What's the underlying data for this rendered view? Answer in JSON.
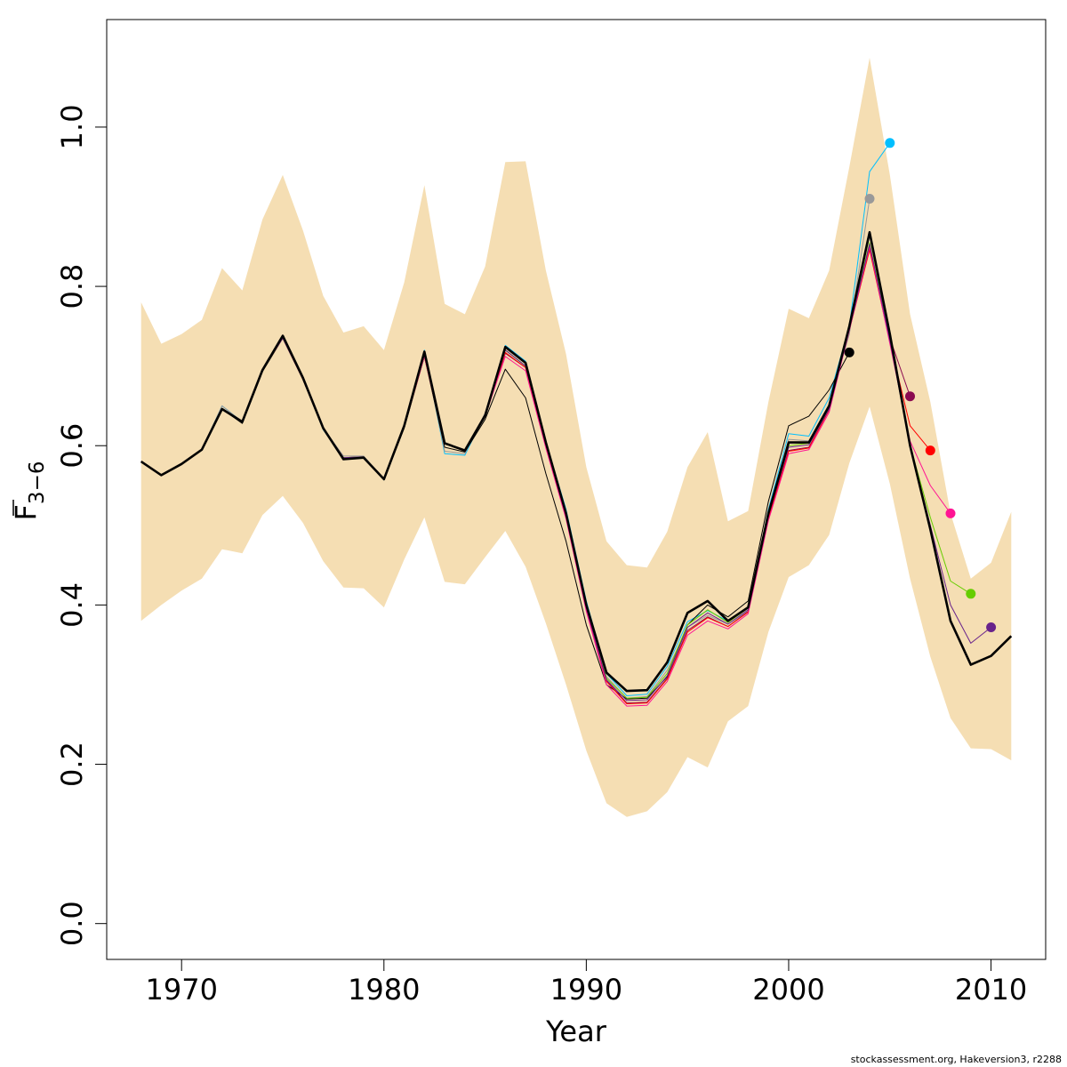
{
  "chart_data": {
    "type": "line",
    "title": "",
    "xlabel": "Year",
    "ylabel": {
      "main": "F",
      "sub": "3−6"
    },
    "xlim": [
      1966.3,
      2012.7
    ],
    "ylim": [
      -0.045,
      1.135
    ],
    "x_ticks": [
      1970,
      1980,
      1990,
      2000,
      2010
    ],
    "x_tick_labels": [
      "1970",
      "1980",
      "1990",
      "2000",
      "2010"
    ],
    "y_ticks": [
      0.0,
      0.2,
      0.4,
      0.6,
      0.8,
      1.0
    ],
    "y_tick_labels": [
      "0.0",
      "0.2",
      "0.4",
      "0.6",
      "0.8",
      "1.0"
    ],
    "grid": false,
    "band_color": "#F5DEB3",
    "band": {
      "x": [
        1968,
        1969,
        1970,
        1971,
        1972,
        1973,
        1974,
        1975,
        1976,
        1977,
        1978,
        1979,
        1980,
        1981,
        1982,
        1983,
        1984,
        1985,
        1986,
        1987,
        1988,
        1989,
        1990,
        1991,
        1992,
        1993,
        1994,
        1995,
        1996,
        1997,
        1998,
        1999,
        2000,
        2001,
        2002,
        2003,
        2004,
        2005,
        2006,
        2007,
        2008,
        2009,
        2010,
        2011
      ],
      "upper": [
        0.78,
        0.728,
        0.74,
        0.758,
        0.823,
        0.795,
        0.884,
        0.94,
        0.87,
        0.788,
        0.742,
        0.75,
        0.72,
        0.805,
        0.927,
        0.778,
        0.765,
        0.825,
        0.956,
        0.957,
        0.82,
        0.715,
        0.573,
        0.48,
        0.45,
        0.447,
        0.492,
        0.573,
        0.617,
        0.505,
        0.518,
        0.655,
        0.772,
        0.76,
        0.82,
        0.95,
        1.087,
        0.94,
        0.765,
        0.655,
        0.515,
        0.433,
        0.453,
        0.517
      ],
      "lower": [
        0.38,
        0.4,
        0.418,
        0.433,
        0.47,
        0.465,
        0.513,
        0.537,
        0.503,
        0.455,
        0.422,
        0.421,
        0.397,
        0.457,
        0.51,
        0.429,
        0.426,
        0.46,
        0.493,
        0.448,
        0.377,
        0.3,
        0.217,
        0.151,
        0.134,
        0.141,
        0.165,
        0.209,
        0.196,
        0.254,
        0.273,
        0.366,
        0.435,
        0.45,
        0.488,
        0.578,
        0.649,
        0.552,
        0.433,
        0.335,
        0.258,
        0.22,
        0.219,
        0.205
      ]
    },
    "series": [
      {
        "color": "#00BFFF",
        "width": 1,
        "marker_last": true,
        "x": [
          1968,
          1969,
          1970,
          1971,
          1972,
          1973,
          1974,
          1975,
          1976,
          1977,
          1978,
          1979,
          1980,
          1981,
          1982,
          1983,
          1984,
          1985,
          1986,
          1987,
          1988,
          1989,
          1990,
          1991,
          1992,
          1993,
          1994,
          1995,
          1996,
          1997,
          1998,
          1999,
          2000,
          2001,
          2002,
          2003,
          2004,
          2005
        ],
        "y": [
          0.58,
          0.563,
          0.577,
          0.595,
          0.65,
          0.63,
          0.695,
          0.738,
          0.685,
          0.62,
          0.585,
          0.585,
          0.557,
          0.625,
          0.72,
          0.59,
          0.588,
          0.64,
          0.726,
          0.706,
          0.605,
          0.52,
          0.405,
          0.314,
          0.286,
          0.288,
          0.323,
          0.379,
          0.393,
          0.38,
          0.396,
          0.52,
          0.615,
          0.612,
          0.66,
          0.75,
          0.944,
          0.98
        ]
      },
      {
        "color": "#999999",
        "width": 1,
        "marker_last": true,
        "x": [
          1968,
          1969,
          1970,
          1971,
          1972,
          1973,
          1974,
          1975,
          1976,
          1977,
          1978,
          1979,
          1980,
          1981,
          1982,
          1983,
          1984,
          1985,
          1986,
          1987,
          1988,
          1989,
          1990,
          1991,
          1992,
          1993,
          1994,
          1995,
          1996,
          1997,
          1998,
          1999,
          2000,
          2001,
          2002,
          2003,
          2004
        ],
        "y": [
          0.58,
          0.563,
          0.577,
          0.595,
          0.65,
          0.63,
          0.695,
          0.737,
          0.685,
          0.622,
          0.587,
          0.587,
          0.558,
          0.626,
          0.718,
          0.593,
          0.59,
          0.641,
          0.724,
          0.703,
          0.603,
          0.515,
          0.398,
          0.31,
          0.283,
          0.285,
          0.318,
          0.372,
          0.387,
          0.376,
          0.392,
          0.514,
          0.608,
          0.606,
          0.652,
          0.74,
          0.91
        ]
      },
      {
        "color": "#000000",
        "width": 1,
        "marker_last": true,
        "x": [
          1968,
          1969,
          1970,
          1971,
          1972,
          1973,
          1974,
          1975,
          1976,
          1977,
          1978,
          1979,
          1980,
          1981,
          1982,
          1983,
          1984,
          1985,
          1986,
          1987,
          1988,
          1989,
          1990,
          1991,
          1992,
          1993,
          1994,
          1995,
          1996,
          1997,
          1998,
          1999,
          2000,
          2001,
          2002,
          2003
        ],
        "y": [
          0.58,
          0.563,
          0.577,
          0.595,
          0.646,
          0.628,
          0.693,
          0.735,
          0.683,
          0.622,
          0.585,
          0.585,
          0.557,
          0.622,
          0.712,
          0.598,
          0.592,
          0.633,
          0.696,
          0.66,
          0.565,
          0.48,
          0.375,
          0.3,
          0.282,
          0.283,
          0.31,
          0.375,
          0.4,
          0.385,
          0.405,
          0.53,
          0.625,
          0.637,
          0.67,
          0.717
        ]
      },
      {
        "color": "#8B0A50",
        "width": 1,
        "marker_last": true,
        "x": [
          1968,
          1969,
          1970,
          1971,
          1972,
          1973,
          1974,
          1975,
          1976,
          1977,
          1978,
          1979,
          1980,
          1981,
          1982,
          1983,
          1984,
          1985,
          1986,
          1987,
          1988,
          1989,
          1990,
          1991,
          1992,
          1993,
          1994,
          1995,
          1996,
          1997,
          1998,
          1999,
          2000,
          2001,
          2002,
          2003,
          2004,
          2005,
          2006
        ],
        "y": [
          0.58,
          0.563,
          0.577,
          0.595,
          0.646,
          0.63,
          0.695,
          0.735,
          0.683,
          0.622,
          0.585,
          0.586,
          0.558,
          0.624,
          0.714,
          0.603,
          0.594,
          0.637,
          0.716,
          0.698,
          0.6,
          0.51,
          0.395,
          0.305,
          0.277,
          0.278,
          0.308,
          0.368,
          0.385,
          0.373,
          0.392,
          0.51,
          0.594,
          0.598,
          0.645,
          0.745,
          0.848,
          0.735,
          0.662
        ]
      },
      {
        "color": "#FF0000",
        "width": 1,
        "marker_last": true,
        "x": [
          1968,
          1969,
          1970,
          1971,
          1972,
          1973,
          1974,
          1975,
          1976,
          1977,
          1978,
          1979,
          1980,
          1981,
          1982,
          1983,
          1984,
          1985,
          1986,
          1987,
          1988,
          1989,
          1990,
          1991,
          1992,
          1993,
          1994,
          1995,
          1996,
          1997,
          1998,
          1999,
          2000,
          2001,
          2002,
          2003,
          2004,
          2005,
          2006,
          2007
        ],
        "y": [
          0.58,
          0.563,
          0.577,
          0.595,
          0.646,
          0.63,
          0.695,
          0.735,
          0.683,
          0.622,
          0.583,
          0.585,
          0.558,
          0.624,
          0.712,
          0.603,
          0.594,
          0.637,
          0.717,
          0.698,
          0.6,
          0.51,
          0.395,
          0.304,
          0.276,
          0.277,
          0.307,
          0.366,
          0.384,
          0.373,
          0.391,
          0.509,
          0.593,
          0.597,
          0.645,
          0.745,
          0.846,
          0.73,
          0.625,
          0.594
        ]
      },
      {
        "color": "#FF1493",
        "width": 1,
        "marker_last": true,
        "x": [
          1968,
          1969,
          1970,
          1971,
          1972,
          1973,
          1974,
          1975,
          1976,
          1977,
          1978,
          1979,
          1980,
          1981,
          1982,
          1983,
          1984,
          1985,
          1986,
          1987,
          1988,
          1989,
          1990,
          1991,
          1992,
          1993,
          1994,
          1995,
          1996,
          1997,
          1998,
          1999,
          2000,
          2001,
          2002,
          2003,
          2004,
          2005,
          2006,
          2007,
          2008
        ],
        "y": [
          0.58,
          0.563,
          0.577,
          0.595,
          0.646,
          0.63,
          0.695,
          0.735,
          0.683,
          0.622,
          0.583,
          0.585,
          0.558,
          0.624,
          0.712,
          0.603,
          0.594,
          0.637,
          0.712,
          0.694,
          0.597,
          0.508,
          0.392,
          0.3,
          0.273,
          0.274,
          0.304,
          0.362,
          0.38,
          0.37,
          0.389,
          0.506,
          0.59,
          0.595,
          0.642,
          0.745,
          0.85,
          0.728,
          0.606,
          0.55,
          0.515
        ]
      },
      {
        "color": "#66CD00",
        "width": 1,
        "marker_last": true,
        "x": [
          1968,
          1969,
          1970,
          1971,
          1972,
          1973,
          1974,
          1975,
          1976,
          1977,
          1978,
          1979,
          1980,
          1981,
          1982,
          1983,
          1984,
          1985,
          1986,
          1987,
          1988,
          1989,
          1990,
          1991,
          1992,
          1993,
          1994,
          1995,
          1996,
          1997,
          1998,
          1999,
          2000,
          2001,
          2002,
          2003,
          2004,
          2005,
          2006,
          2007,
          2008,
          2009
        ],
        "y": [
          0.58,
          0.563,
          0.577,
          0.595,
          0.646,
          0.63,
          0.695,
          0.735,
          0.683,
          0.622,
          0.585,
          0.586,
          0.558,
          0.624,
          0.714,
          0.603,
          0.594,
          0.637,
          0.72,
          0.7,
          0.603,
          0.514,
          0.398,
          0.308,
          0.283,
          0.284,
          0.314,
          0.375,
          0.394,
          0.378,
          0.396,
          0.515,
          0.6,
          0.603,
          0.648,
          0.748,
          0.855,
          0.735,
          0.6,
          0.51,
          0.43,
          0.414
        ]
      },
      {
        "color": "#68228B",
        "width": 1,
        "marker_last": true,
        "x": [
          1968,
          1969,
          1970,
          1971,
          1972,
          1973,
          1974,
          1975,
          1976,
          1977,
          1978,
          1979,
          1980,
          1981,
          1982,
          1983,
          1984,
          1985,
          1986,
          1987,
          1988,
          1989,
          1990,
          1991,
          1992,
          1993,
          1994,
          1995,
          1996,
          1997,
          1998,
          1999,
          2000,
          2001,
          2002,
          2003,
          2004,
          2005,
          2006,
          2007,
          2008,
          2009,
          2010
        ],
        "y": [
          0.58,
          0.563,
          0.577,
          0.595,
          0.646,
          0.63,
          0.695,
          0.735,
          0.683,
          0.622,
          0.585,
          0.586,
          0.558,
          0.624,
          0.714,
          0.603,
          0.594,
          0.637,
          0.72,
          0.7,
          0.603,
          0.512,
          0.396,
          0.306,
          0.28,
          0.281,
          0.311,
          0.372,
          0.39,
          0.376,
          0.394,
          0.513,
          0.598,
          0.601,
          0.646,
          0.746,
          0.853,
          0.732,
          0.6,
          0.5,
          0.4,
          0.352,
          0.372
        ]
      },
      {
        "color": "#000000",
        "width": 2.6,
        "marker_last": false,
        "x": [
          1968,
          1969,
          1970,
          1971,
          1972,
          1973,
          1974,
          1975,
          1976,
          1977,
          1978,
          1979,
          1980,
          1981,
          1982,
          1983,
          1984,
          1985,
          1986,
          1987,
          1988,
          1989,
          1990,
          1991,
          1992,
          1993,
          1994,
          1995,
          1996,
          1997,
          1998,
          1999,
          2000,
          2001,
          2002,
          2003,
          2004,
          2005,
          2006,
          2007,
          2008,
          2009,
          2010,
          2011
        ],
        "y": [
          0.58,
          0.563,
          0.577,
          0.595,
          0.646,
          0.63,
          0.695,
          0.738,
          0.685,
          0.622,
          0.583,
          0.585,
          0.558,
          0.625,
          0.718,
          0.603,
          0.594,
          0.638,
          0.724,
          0.704,
          0.604,
          0.515,
          0.4,
          0.315,
          0.292,
          0.293,
          0.328,
          0.39,
          0.405,
          0.38,
          0.397,
          0.515,
          0.604,
          0.604,
          0.65,
          0.75,
          0.868,
          0.74,
          0.6,
          0.495,
          0.38,
          0.325,
          0.336,
          0.361
        ]
      }
    ]
  },
  "footer": "stockassessment.org, Hakeversion3, r2288"
}
